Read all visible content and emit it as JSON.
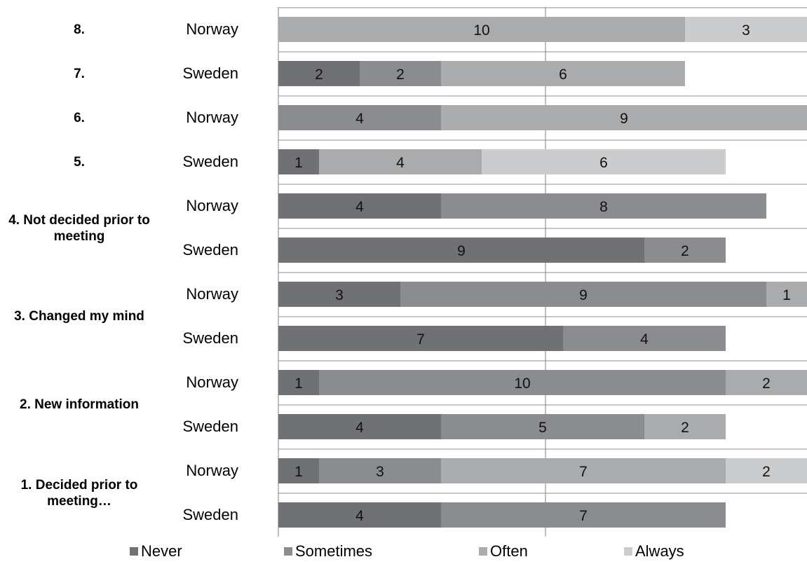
{
  "chart_data": {
    "type": "bar",
    "orientation": "horizontal",
    "stacked": true,
    "legend_position": "bottom",
    "colors": {
      "Never": "#6f7174",
      "Sometimes": "#8a8c8f",
      "Often": "#a9abad",
      "Always": "#cbcccd"
    },
    "groups": [
      {
        "label": "8.",
        "rows": [
          {
            "country": "Norway",
            "values": [
              0,
              0,
              10,
              3
            ]
          }
        ]
      },
      {
        "label": "7.",
        "rows": [
          {
            "country": "Sweden",
            "values": [
              2,
              2,
              6,
              0
            ]
          }
        ]
      },
      {
        "label": "6.",
        "rows": [
          {
            "country": "Norway",
            "values": [
              0,
              4,
              9,
              0
            ]
          }
        ]
      },
      {
        "label": "5.",
        "rows": [
          {
            "country": "Sweden",
            "values": [
              1,
              0,
              4,
              6
            ]
          }
        ]
      },
      {
        "label": "4. Not decided prior to meeting",
        "rows": [
          {
            "country": "Norway",
            "values": [
              4,
              8,
              0,
              0
            ]
          },
          {
            "country": "Sweden",
            "values": [
              9,
              2,
              0,
              0
            ]
          }
        ]
      },
      {
        "label": "3. Changed my mind",
        "rows": [
          {
            "country": "Norway",
            "values": [
              3,
              9,
              1,
              0
            ]
          },
          {
            "country": "Sweden",
            "values": [
              7,
              4,
              0,
              0
            ]
          }
        ]
      },
      {
        "label": "2. New information",
        "rows": [
          {
            "country": "Norway",
            "values": [
              1,
              10,
              2,
              0
            ]
          },
          {
            "country": "Sweden",
            "values": [
              4,
              5,
              2,
              0
            ]
          }
        ]
      },
      {
        "label": "1. Decided prior to meeting…",
        "rows": [
          {
            "country": "Norway",
            "values": [
              1,
              3,
              7,
              2
            ]
          },
          {
            "country": "Sweden",
            "values": [
              4,
              7,
              0,
              0
            ]
          }
        ]
      }
    ],
    "series": [
      {
        "name": "Never"
      },
      {
        "name": "Sometimes"
      },
      {
        "name": "Often"
      },
      {
        "name": "Always"
      }
    ],
    "xlim": [
      0,
      13
    ]
  }
}
